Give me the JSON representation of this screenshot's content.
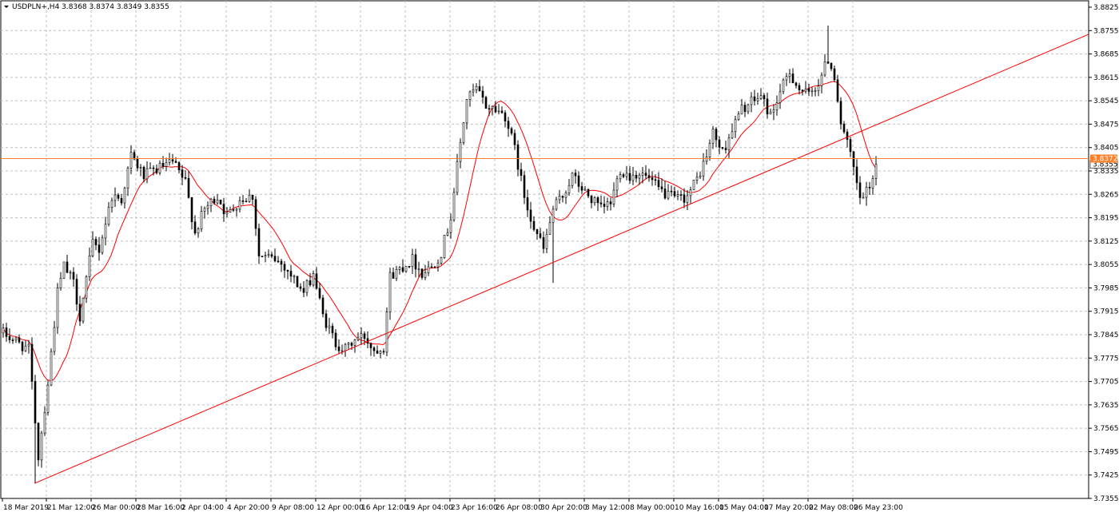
{
  "chart_data": {
    "type": "candlestick",
    "title": "USDPLN+,H4  3.8368 3.8374 3.8349 3.8355",
    "ylim": [
      3.7355,
      3.8825
    ],
    "y_ticks": [
      "3.8825",
      "3.8755",
      "3.8685",
      "3.8615",
      "3.8545",
      "3.8475",
      "3.8405",
      "3.8335",
      "3.8265",
      "3.8195",
      "3.8125",
      "3.8055",
      "3.7985",
      "3.7915",
      "3.7845",
      "3.7775",
      "3.7705",
      "3.7635",
      "3.7565",
      "3.7495",
      "3.7425",
      "3.7355"
    ],
    "x_ticks": [
      "18 Mar 2019",
      "21 Mar 12:00",
      "26 Mar 00:00",
      "28 Mar 16:00",
      "2 Apr 04:00",
      "4 Apr 20:00",
      "9 Apr 08:00",
      "12 Apr 00:00",
      "16 Apr 12:00",
      "19 Apr 04:00",
      "23 Apr 16:00",
      "26 Apr 08:00",
      "30 Apr 20:00",
      "3 May 12:00",
      "8 May 00:00",
      "10 May 16:00",
      "15 May 04:00",
      "17 May 20:00",
      "22 May 08:00",
      "26 May 23:00"
    ],
    "grid": true,
    "horizontal_line": {
      "price": 3.8372,
      "label": "3.8372",
      "color": "#ff7f27"
    },
    "bid_price": {
      "price": 3.8355,
      "label": "3.8355"
    },
    "trendline": {
      "from": {
        "bar": 0,
        "price": 3.74
      },
      "to": {
        "bar": 268,
        "price": 3.846
      },
      "color": "#ff0000"
    },
    "moving_average": {
      "color": "#ff0000"
    },
    "candle_color": "#000000",
    "price_path": [
      [
        0,
        3.785
      ],
      [
        8,
        3.78
      ],
      [
        11,
        3.748
      ],
      [
        14,
        3.77
      ],
      [
        17,
        3.797
      ],
      [
        19,
        3.805
      ],
      [
        22,
        3.8
      ],
      [
        24,
        3.79
      ],
      [
        28,
        3.812
      ],
      [
        30,
        3.81
      ],
      [
        34,
        3.826
      ],
      [
        37,
        3.825
      ],
      [
        40,
        3.838
      ],
      [
        44,
        3.832
      ],
      [
        48,
        3.834
      ],
      [
        53,
        3.836
      ],
      [
        57,
        3.83
      ],
      [
        60,
        3.815
      ],
      [
        63,
        3.822
      ],
      [
        67,
        3.826
      ],
      [
        70,
        3.82
      ],
      [
        74,
        3.825
      ],
      [
        78,
        3.826
      ],
      [
        80,
        3.808
      ],
      [
        85,
        3.807
      ],
      [
        88,
        3.805
      ],
      [
        91,
        3.801
      ],
      [
        94,
        3.797
      ],
      [
        97,
        3.803
      ],
      [
        100,
        3.79
      ],
      [
        104,
        3.782
      ],
      [
        107,
        3.78
      ],
      [
        110,
        3.783
      ],
      [
        113,
        3.784
      ],
      [
        116,
        3.78
      ],
      [
        119,
        3.781
      ],
      [
        121,
        3.802
      ],
      [
        125,
        3.805
      ],
      [
        128,
        3.807
      ],
      [
        131,
        3.803
      ],
      [
        134,
        3.805
      ],
      [
        137,
        3.809
      ],
      [
        140,
        3.82
      ],
      [
        142,
        3.835
      ],
      [
        145,
        3.855
      ],
      [
        148,
        3.858
      ],
      [
        151,
        3.853
      ],
      [
        154,
        3.852
      ],
      [
        157,
        3.85
      ],
      [
        160,
        3.84
      ],
      [
        163,
        3.826
      ],
      [
        166,
        3.817
      ],
      [
        169,
        3.81
      ],
      [
        172,
        3.822
      ],
      [
        175,
        3.826
      ],
      [
        178,
        3.832
      ],
      [
        181,
        3.828
      ],
      [
        184,
        3.825
      ],
      [
        187,
        3.822
      ],
      [
        190,
        3.824
      ],
      [
        193,
        3.834
      ],
      [
        196,
        3.832
      ],
      [
        199,
        3.833
      ],
      [
        202,
        3.831
      ],
      [
        205,
        3.828
      ],
      [
        208,
        3.826
      ],
      [
        211,
        3.825
      ],
      [
        214,
        3.826
      ],
      [
        217,
        3.831
      ],
      [
        220,
        3.838
      ],
      [
        222,
        3.845
      ],
      [
        225,
        3.839
      ],
      [
        228,
        3.846
      ],
      [
        231,
        3.852
      ],
      [
        234,
        3.854
      ],
      [
        237,
        3.856
      ],
      [
        240,
        3.85
      ],
      [
        243,
        3.857
      ],
      [
        246,
        3.863
      ],
      [
        249,
        3.858
      ],
      [
        252,
        3.856
      ],
      [
        255,
        3.86
      ],
      [
        258,
        3.867
      ],
      [
        260,
        3.862
      ],
      [
        262,
        3.848
      ],
      [
        265,
        3.838
      ],
      [
        268,
        3.825
      ],
      [
        271,
        3.828
      ],
      [
        273,
        3.836
      ]
    ]
  }
}
